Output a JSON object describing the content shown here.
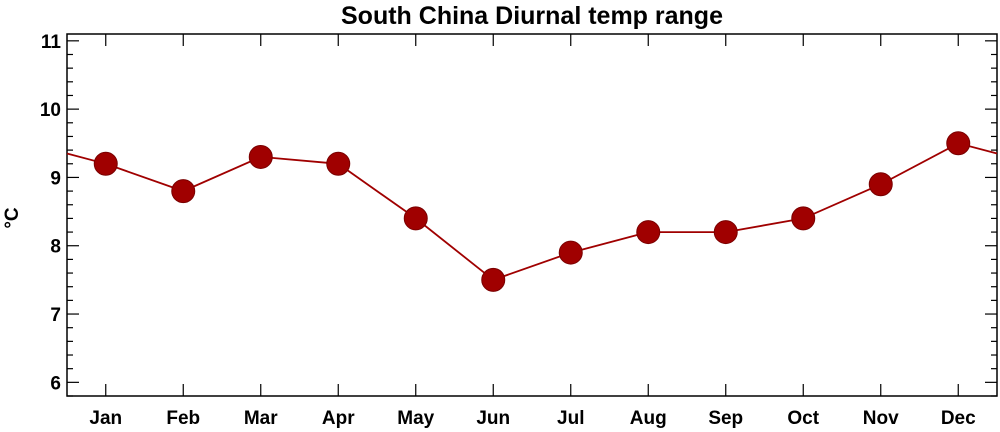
{
  "chart_data": {
    "type": "line",
    "title": "South China Diurnal temp range",
    "xlabel": "",
    "ylabel": "°C",
    "categories": [
      "Jan",
      "Feb",
      "Mar",
      "Apr",
      "May",
      "Jun",
      "Jul",
      "Aug",
      "Sep",
      "Oct",
      "Nov",
      "Dec"
    ],
    "values": [
      9.2,
      8.8,
      9.3,
      9.2,
      8.4,
      7.5,
      7.9,
      8.2,
      8.2,
      8.4,
      8.9,
      9.5
    ],
    "ylim": [
      5.8,
      11.1
    ],
    "yticks": [
      6,
      7,
      8,
      9,
      10,
      11
    ],
    "cyclic": true,
    "grid": false,
    "colors": {
      "line": "#a00000",
      "marker": "#a00000",
      "axis": "#000000"
    }
  }
}
